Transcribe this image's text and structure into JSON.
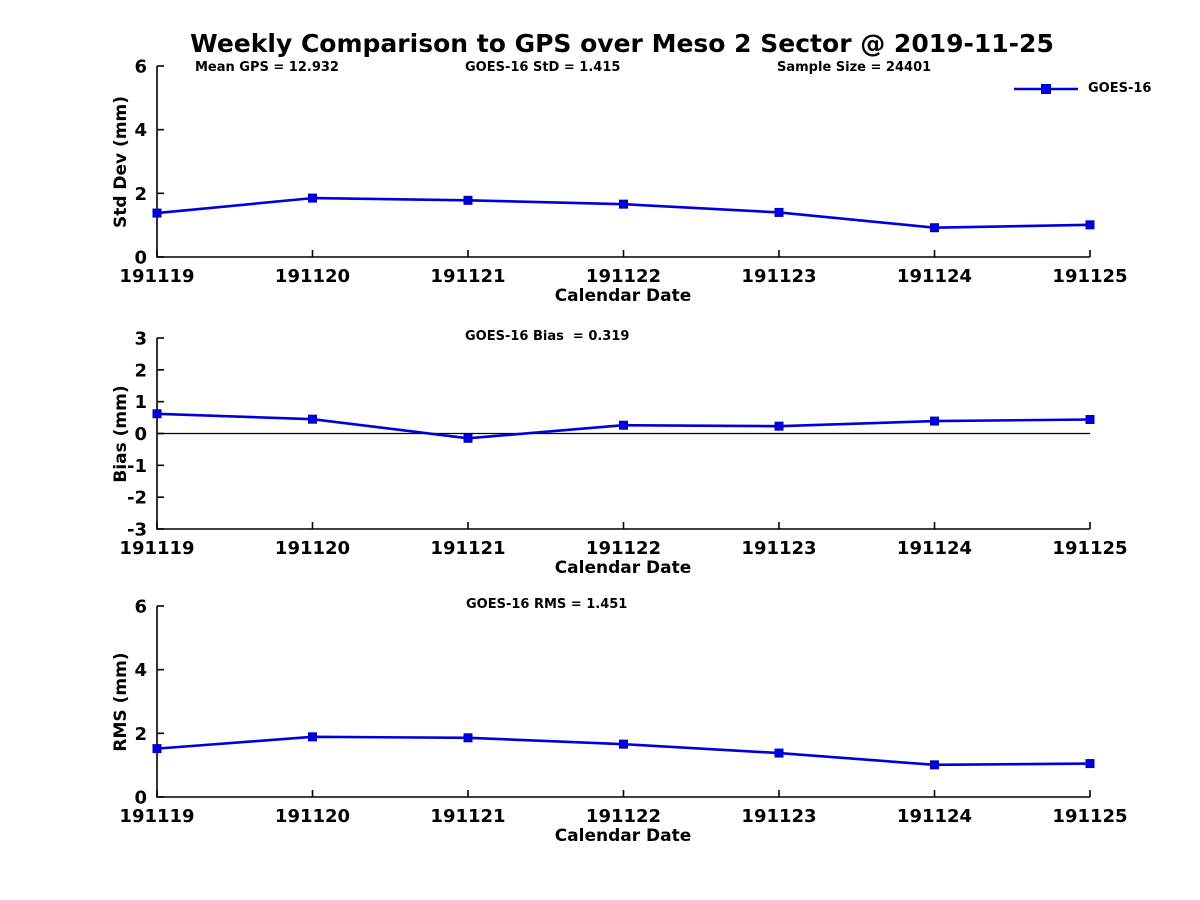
{
  "figure": {
    "title": "Weekly Comparison to GPS over Meso 2 Sector @ 2019-11-25",
    "legend": {
      "label": "GOES-16"
    }
  },
  "colors": {
    "series": "#0000dd",
    "marker_fill": "#0000e0",
    "axis": "#000000",
    "text": "#000000",
    "background": "#ffffff"
  },
  "chart_data": [
    {
      "type": "line",
      "title": "",
      "ylabel": "Std Dev (mm)",
      "xlabel": "Calendar Date",
      "categories": [
        "191119",
        "191120",
        "191121",
        "191122",
        "191123",
        "191124",
        "191125"
      ],
      "series": [
        {
          "name": "GOES-16",
          "values": [
            1.38,
            1.85,
            1.78,
            1.66,
            1.4,
            0.92,
            1.01
          ]
        }
      ],
      "ylim": [
        0,
        6
      ],
      "yticks": [
        0,
        2,
        4,
        6
      ],
      "grid": false,
      "legend_position": "top-right",
      "annotations": [
        "Mean GPS = 12.932",
        "GOES-16 StD = 1.415",
        "Sample Size = 24401"
      ]
    },
    {
      "type": "line",
      "title": "GOES-16 Bias  = 0.319",
      "ylabel": "Bias (mm)",
      "xlabel": "Calendar Date",
      "categories": [
        "191119",
        "191120",
        "191121",
        "191122",
        "191123",
        "191124",
        "191125"
      ],
      "series": [
        {
          "name": "GOES-16",
          "values": [
            0.62,
            0.45,
            -0.15,
            0.26,
            0.23,
            0.39,
            0.44
          ]
        }
      ],
      "ylim": [
        -3,
        3
      ],
      "yticks": [
        -3,
        -2,
        -1,
        0,
        1,
        2,
        3
      ],
      "zero_line": true,
      "grid": false
    },
    {
      "type": "line",
      "title": "GOES-16 RMS = 1.451",
      "ylabel": "RMS (mm)",
      "xlabel": "Calendar Date",
      "categories": [
        "191119",
        "191120",
        "191121",
        "191122",
        "191123",
        "191124",
        "191125"
      ],
      "series": [
        {
          "name": "GOES-16",
          "values": [
            1.52,
            1.89,
            1.86,
            1.66,
            1.38,
            1.01,
            1.05
          ]
        }
      ],
      "ylim": [
        0,
        6
      ],
      "yticks": [
        0,
        2,
        4,
        6
      ],
      "grid": false
    }
  ]
}
